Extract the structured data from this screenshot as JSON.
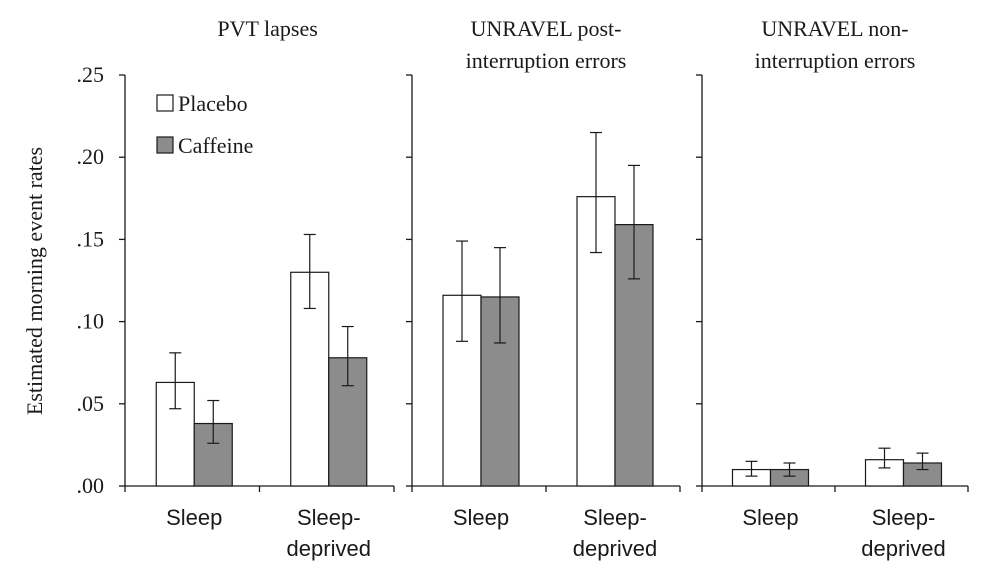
{
  "chart_data": {
    "type": "bar",
    "ylabel": "Estimated morning event rates",
    "ylim": [
      0,
      0.25
    ],
    "yticks": [
      {
        "value": 0.0,
        "label": ".00"
      },
      {
        "value": 0.05,
        "label": ".05"
      },
      {
        "value": 0.1,
        "label": ".10"
      },
      {
        "value": 0.15,
        "label": ".15"
      },
      {
        "value": 0.2,
        "label": ".20"
      },
      {
        "value": 0.25,
        "label": ".25"
      }
    ],
    "legend": {
      "placement": "top-left",
      "entries": [
        {
          "name": "Placebo",
          "color": "#ffffff"
        },
        {
          "name": "Caffeine",
          "color": "#8c8c8c"
        }
      ]
    },
    "categories": [
      {
        "line1": "Sleep",
        "line2": ""
      },
      {
        "line1": "Sleep-",
        "line2": "deprived"
      }
    ],
    "panels": [
      {
        "title_lines": [
          "PVT lapses"
        ],
        "series": [
          {
            "name": "Placebo",
            "values": [
              0.063,
              0.13
            ],
            "err_low": [
              0.047,
              0.108
            ],
            "err_high": [
              0.081,
              0.153
            ]
          },
          {
            "name": "Caffeine",
            "values": [
              0.038,
              0.078
            ],
            "err_low": [
              0.026,
              0.061
            ],
            "err_high": [
              0.052,
              0.097
            ]
          }
        ]
      },
      {
        "title_lines": [
          "UNRAVEL post-",
          "interruption errors"
        ],
        "series": [
          {
            "name": "Placebo",
            "values": [
              0.116,
              0.176
            ],
            "err_low": [
              0.088,
              0.142
            ],
            "err_high": [
              0.149,
              0.215
            ]
          },
          {
            "name": "Caffeine",
            "values": [
              0.115,
              0.159
            ],
            "err_low": [
              0.087,
              0.126
            ],
            "err_high": [
              0.145,
              0.195
            ]
          }
        ]
      },
      {
        "title_lines": [
          "UNRAVEL non-",
          "interruption errors"
        ],
        "series": [
          {
            "name": "Placebo",
            "values": [
              0.01,
              0.016
            ],
            "err_low": [
              0.006,
              0.011
            ],
            "err_high": [
              0.015,
              0.023
            ]
          },
          {
            "name": "Caffeine",
            "values": [
              0.01,
              0.014
            ],
            "err_low": [
              0.006,
              0.01
            ],
            "err_high": [
              0.014,
              0.02
            ]
          }
        ]
      }
    ]
  }
}
